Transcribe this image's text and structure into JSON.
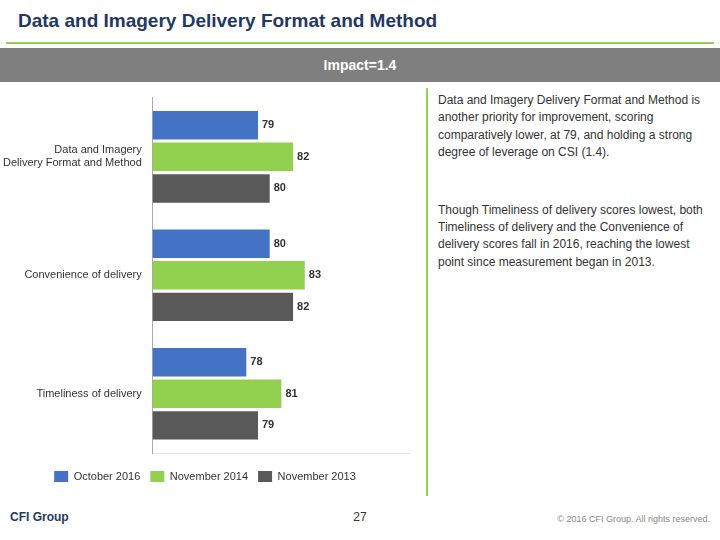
{
  "chart_data": {
    "type": "bar",
    "orientation": "horizontal",
    "title": "Data and Imagery Delivery Format and Method",
    "subtitle": "Impact=1.4",
    "categories": [
      "Data and Imagery\nDelivery Format and Method",
      "Convenience of delivery",
      "Timeliness of delivery"
    ],
    "series": [
      {
        "name": "October 2016",
        "color": "#4472C4",
        "values": [
          79,
          80,
          78
        ]
      },
      {
        "name": "November 2014",
        "color": "#92D050",
        "values": [
          82,
          83,
          81
        ]
      },
      {
        "name": "November 2013",
        "color": "#595959",
        "values": [
          80,
          82,
          79
        ]
      }
    ],
    "xlim": [
      70,
      92
    ],
    "grid": false,
    "legend": "bottom",
    "data_labels": true,
    "tick_labels": "y",
    "annotations": [
      "Data and Imagery Delivery Format and Method is another priority for improvement, scoring comparatively lower, at 79, and holding a strong degree of leverage on CSI (1.4).",
      "Though Timeliness of delivery scores lowest, both Timeliness of delivery and the Convenience of delivery scores fall in 2016, reaching the lowest point since measurement began in 2013.",
      "27",
      "CFI Group",
      "© 2016 CFI Group. All rights reserved."
    ]
  }
}
